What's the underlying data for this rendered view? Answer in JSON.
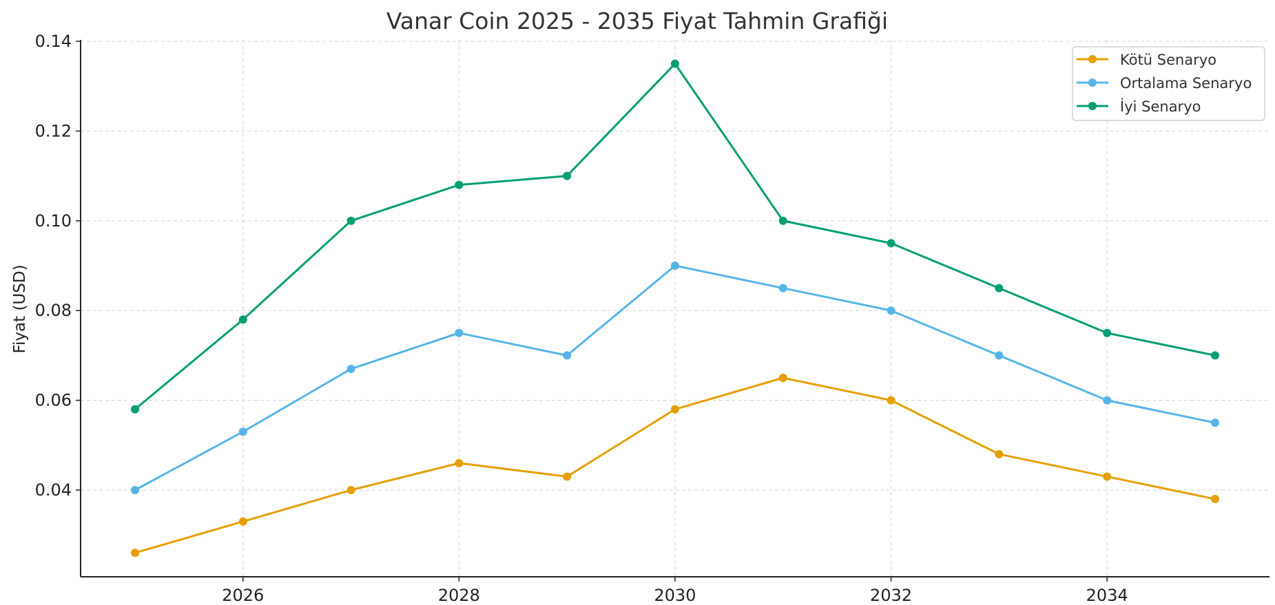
{
  "chart_data": {
    "type": "line",
    "title": "Vanar Coin 2025 - 2035 Fiyat Tahmin Grafiği",
    "xlabel": "",
    "ylabel": "Fiyat (USD)",
    "x": [
      2025,
      2026,
      2027,
      2028,
      2029,
      2030,
      2031,
      2032,
      2033,
      2034,
      2035
    ],
    "xticks": [
      "2026",
      "2028",
      "2030",
      "2032",
      "2034"
    ],
    "xtick_values": [
      2026,
      2028,
      2030,
      2032,
      2034
    ],
    "yticks": [
      "0.04",
      "0.06",
      "0.08",
      "0.10",
      "0.12",
      "0.14"
    ],
    "ytick_values": [
      0.04,
      0.06,
      0.08,
      0.1,
      0.12,
      0.14
    ],
    "xlim": [
      2024.5,
      2035.5
    ],
    "ylim": [
      0.0207,
      0.14
    ],
    "grid": true,
    "legend_position": "upper right",
    "series": [
      {
        "name": "Kötü Senaryo",
        "color": "#E69F00",
        "values": [
          0.026,
          0.033,
          0.04,
          0.046,
          0.043,
          0.058,
          0.065,
          0.06,
          0.048,
          0.043,
          0.038
        ]
      },
      {
        "name": "Ortalama Senaryo",
        "color": "#56B4E9",
        "values": [
          0.04,
          0.053,
          0.067,
          0.075,
          0.07,
          0.09,
          0.085,
          0.08,
          0.07,
          0.06,
          0.055
        ]
      },
      {
        "name": "İyi Senaryo",
        "color": "#009E73",
        "values": [
          0.058,
          0.078,
          0.1,
          0.108,
          0.11,
          0.135,
          0.1,
          0.095,
          0.085,
          0.075,
          0.07
        ]
      }
    ]
  }
}
